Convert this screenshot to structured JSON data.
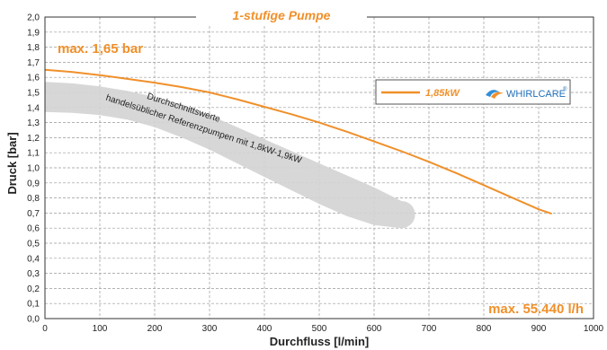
{
  "chart_data": {
    "type": "line",
    "title": "1-stufige Pumpe",
    "xlabel": "Durchfluss [l/min]",
    "ylabel": "Druck [bar]",
    "xlim": [
      0,
      1000
    ],
    "ylim": [
      0,
      2.0
    ],
    "x_ticks": [
      0,
      100,
      200,
      300,
      400,
      500,
      600,
      700,
      800,
      900,
      1000
    ],
    "y_ticks": [
      "0,0",
      "0,1",
      "0,2",
      "0,3",
      "0,4",
      "0,5",
      "0,6",
      "0,7",
      "0,8",
      "0,9",
      "1,0",
      "1,1",
      "1,2",
      "1,3",
      "1,4",
      "1,5",
      "1,6",
      "1,7",
      "1,8",
      "1,9",
      "2,0"
    ],
    "grid": true,
    "series": [
      {
        "name": "1,85kW",
        "color": "#f0902a",
        "x": [
          0,
          50,
          100,
          150,
          200,
          250,
          300,
          350,
          400,
          450,
          500,
          550,
          600,
          650,
          700,
          750,
          800,
          850,
          900,
          924
        ],
        "y": [
          1.65,
          1.635,
          1.615,
          1.59,
          1.565,
          1.535,
          1.5,
          1.455,
          1.405,
          1.355,
          1.3,
          1.24,
          1.175,
          1.11,
          1.04,
          0.965,
          0.885,
          0.805,
          0.725,
          0.695
        ]
      }
    ],
    "band": {
      "color": "#d3d3d3",
      "upper": {
        "x": [
          0,
          50,
          100,
          150,
          200,
          250,
          300,
          350,
          400,
          450,
          500,
          550,
          600,
          650
        ],
        "y": [
          1.57,
          1.56,
          1.54,
          1.51,
          1.47,
          1.42,
          1.35,
          1.27,
          1.19,
          1.11,
          1.03,
          0.95,
          0.87,
          0.78
        ]
      },
      "lower": {
        "x": [
          650,
          600,
          550,
          500,
          450,
          400,
          350,
          300,
          250,
          200,
          150,
          100,
          50,
          0
        ],
        "y": [
          0.6,
          0.62,
          0.68,
          0.76,
          0.85,
          0.94,
          1.03,
          1.12,
          1.2,
          1.27,
          1.32,
          1.35,
          1.365,
          1.37
        ]
      }
    },
    "annotations": {
      "band_label_1": "Durchschnittswerte",
      "band_label_2": "handelsüblicher Referenzpumpen mit 1,8kW-1,9kW",
      "max_pressure": "max. 1,65 bar",
      "max_flow": "max. 55.440 l/h"
    },
    "legend": {
      "position": "top-right",
      "label": "1,85kW",
      "brand": "WHIRLCARE",
      "brand_mark": "®"
    }
  }
}
